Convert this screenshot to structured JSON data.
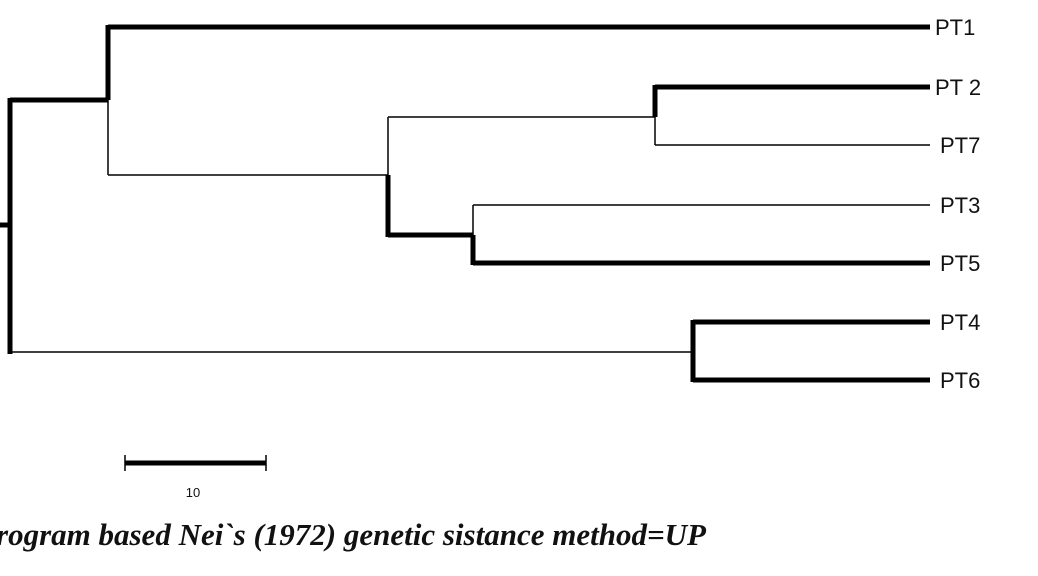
{
  "leaves": [
    "PT1",
    "PT 2",
    "PT7",
    "PT3",
    "PT5",
    "PT4",
    "PT6"
  ],
  "scale_bar": {
    "label": "10"
  },
  "caption": "rogram based Nei`s (1972) genetic sistance method=UP"
}
